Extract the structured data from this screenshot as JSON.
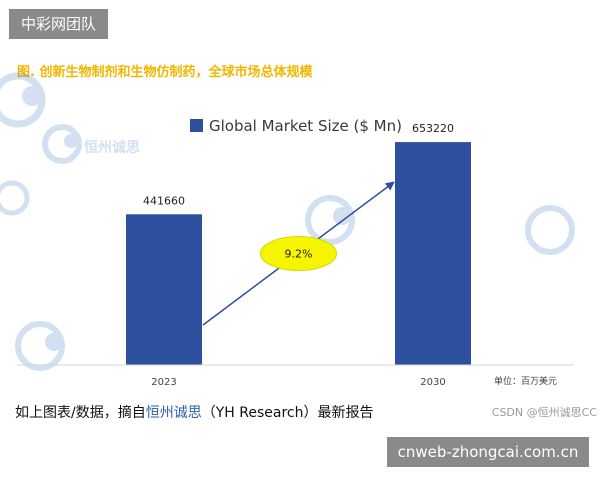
{
  "header_badge": "中彩网团队",
  "figure_title": "图. 创新生物制剂和生物仿制药，全球市场总体规模",
  "watermark_text": "恒州诚思",
  "chart_data": {
    "type": "bar",
    "title": "",
    "legend": [
      {
        "label": "Global Market Size ($ Mn)",
        "color": "#2e4f9e"
      }
    ],
    "legend_placement": "top-center",
    "categories": [
      "2023",
      "2030"
    ],
    "values": [
      441660,
      653220
    ],
    "series": [
      {
        "name": "Global Market Size ($ Mn)",
        "values": [
          441660,
          653220
        ]
      }
    ],
    "data_labels": [
      "441660",
      "653220"
    ],
    "annotation": {
      "text": "9.2%",
      "color": "#f5f500"
    },
    "unit_note": "单位：百万美元",
    "ylim": [
      0,
      800000
    ],
    "grid": false,
    "bar_color": "#2e4f9e"
  },
  "caption": {
    "prefix": "如上图表/数据，摘自",
    "highlight": "恒州诚思",
    "suffix": "（YH Research）最新报告"
  },
  "csdn_watermark": "CSDN @恒州诚思CC",
  "footer_badge": "cnweb-zhongcai.com.cn"
}
